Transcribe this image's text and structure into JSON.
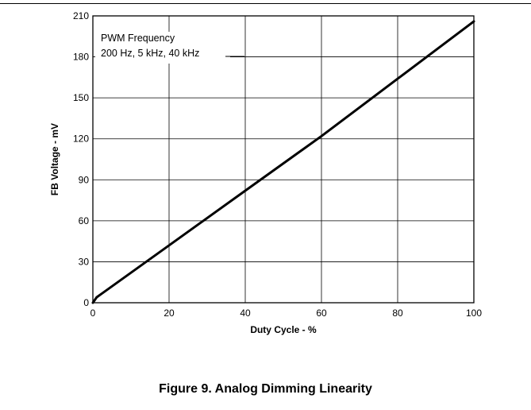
{
  "caption": "Figure 9. Analog Dimming Linearity",
  "chart_data": {
    "type": "line",
    "title": "",
    "xlabel": "Duty Cycle - %",
    "ylabel": "FB Voltage - mV",
    "xlim": [
      0,
      100
    ],
    "ylim": [
      0,
      210
    ],
    "x_ticks": [
      0,
      20,
      40,
      60,
      80,
      100
    ],
    "y_ticks": [
      0,
      30,
      60,
      90,
      120,
      150,
      180,
      210
    ],
    "grid": true,
    "annotation_lines": [
      "PWM Frequency",
      "200 Hz, 5 kHz, 40 kHz"
    ],
    "series": [
      {
        "color": "#000000",
        "x": [
          0,
          1,
          2,
          20,
          40,
          60,
          80,
          100
        ],
        "y": [
          0,
          4,
          6,
          42,
          82,
          122,
          164,
          206
        ]
      }
    ]
  }
}
